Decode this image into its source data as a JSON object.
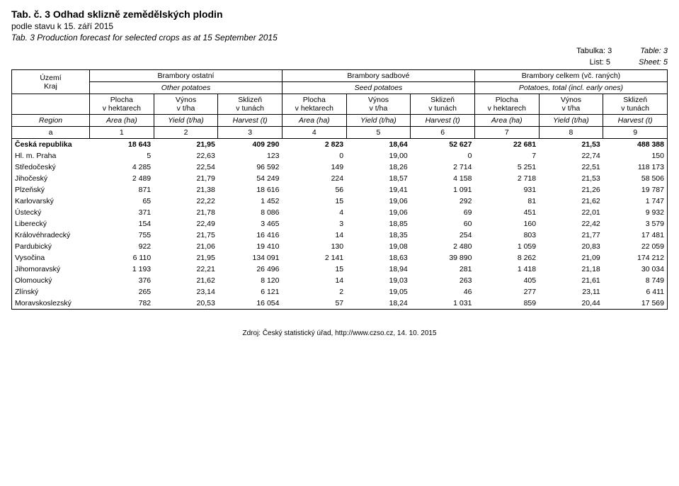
{
  "header": {
    "title_cz": "Tab. č. 3  Odhad sklizně zemědělských plodin",
    "subtitle_cz": "podle stavu k 15. září 2015",
    "title_en": "Tab. 3 Production forecast for selected crops as at 15 September 2015",
    "meta": {
      "tabulka_cz": "Tabulka: 3",
      "tabulka_en": "Table: 3",
      "list_cz": "List: 5",
      "list_en": "Sheet: 5"
    }
  },
  "groups": [
    {
      "cz": "Brambory ostatní",
      "en": "Other potatoes"
    },
    {
      "cz": "Brambory sadbové",
      "en": "Seed potatoes"
    },
    {
      "cz": "Brambory celkem (vč. raných)",
      "en": "Potatoes, total (incl. early ones)"
    }
  ],
  "rowhead": {
    "cz1": "Území",
    "cz2": "Kraj",
    "en": "Region",
    "colnum": "a"
  },
  "subcols": {
    "plocha_cz": "Plocha",
    "plocha_unit": "v hektarech",
    "plocha_en": "Area (ha)",
    "vynos_cz": "Výnos",
    "vynos_unit": "v t/ha",
    "vynos_en": "Yield (t/ha)",
    "sklizen_cz": "Sklizeň",
    "sklizen_unit": "v tunách",
    "sklizen_en": "Harvest (t)"
  },
  "colnums": [
    "1",
    "2",
    "3",
    "4",
    "5",
    "6",
    "7",
    "8",
    "9"
  ],
  "rows": [
    {
      "label": "Česká republika",
      "bold": true,
      "v": [
        "18 643",
        "21,95",
        "409 290",
        "2 823",
        "18,64",
        "52 627",
        "22 681",
        "21,53",
        "488 388"
      ]
    },
    {
      "label": "Hl. m. Praha",
      "v": [
        "5",
        "22,63",
        "123",
        "0",
        "19,00",
        "0",
        "7",
        "22,74",
        "150"
      ]
    },
    {
      "label": "Středočeský",
      "v": [
        "4 285",
        "22,54",
        "96 592",
        "149",
        "18,26",
        "2 714",
        "5 251",
        "22,51",
        "118 173"
      ]
    },
    {
      "label": "Jihočeský",
      "v": [
        "2 489",
        "21,79",
        "54 249",
        "224",
        "18,57",
        "4 158",
        "2 718",
        "21,53",
        "58 506"
      ]
    },
    {
      "label": "Plzeňský",
      "v": [
        "871",
        "21,38",
        "18 616",
        "56",
        "19,41",
        "1 091",
        "931",
        "21,26",
        "19 787"
      ]
    },
    {
      "label": "Karlovarský",
      "v": [
        "65",
        "22,22",
        "1 452",
        "15",
        "19,06",
        "292",
        "81",
        "21,62",
        "1 747"
      ]
    },
    {
      "label": "Ústecký",
      "v": [
        "371",
        "21,78",
        "8 086",
        "4",
        "19,06",
        "69",
        "451",
        "22,01",
        "9 932"
      ]
    },
    {
      "label": "Liberecký",
      "v": [
        "154",
        "22,49",
        "3 465",
        "3",
        "18,85",
        "60",
        "160",
        "22,42",
        "3 579"
      ]
    },
    {
      "label": "Královéhradecký",
      "v": [
        "755",
        "21,75",
        "16 416",
        "14",
        "18,35",
        "254",
        "803",
        "21,77",
        "17 481"
      ]
    },
    {
      "label": "Pardubický",
      "v": [
        "922",
        "21,06",
        "19 410",
        "130",
        "19,08",
        "2 480",
        "1 059",
        "20,83",
        "22 059"
      ]
    },
    {
      "label": "Vysočina",
      "v": [
        "6 110",
        "21,95",
        "134 091",
        "2 141",
        "18,63",
        "39 890",
        "8 262",
        "21,09",
        "174 212"
      ]
    },
    {
      "label": "Jihomoravský",
      "v": [
        "1 193",
        "22,21",
        "26 496",
        "15",
        "18,94",
        "281",
        "1 418",
        "21,18",
        "30 034"
      ]
    },
    {
      "label": "Olomoucký",
      "v": [
        "376",
        "21,62",
        "8 120",
        "14",
        "19,03",
        "263",
        "405",
        "21,61",
        "8 749"
      ]
    },
    {
      "label": "Zlínský",
      "v": [
        "265",
        "23,14",
        "6 121",
        "2",
        "19,05",
        "46",
        "277",
        "23,11",
        "6 411"
      ]
    },
    {
      "label": "Moravskoslezský",
      "v": [
        "782",
        "20,53",
        "16 054",
        "57",
        "18,24",
        "1 031",
        "859",
        "20,44",
        "17 569"
      ]
    }
  ],
  "source": "Zdroj: Český statistický úřad, http://www.czso.cz, 14. 10. 2015"
}
